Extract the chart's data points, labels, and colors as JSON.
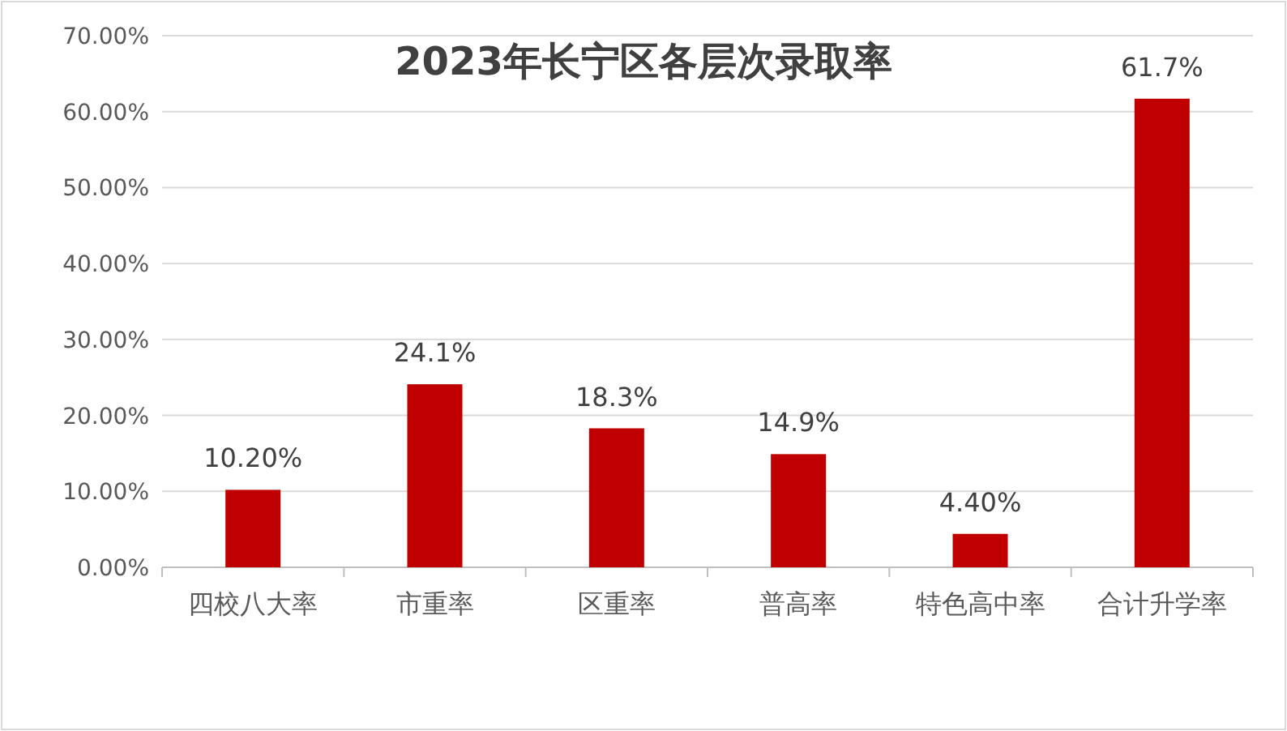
{
  "chart_data": {
    "type": "bar",
    "title": "2023年长宁区各层次录取率",
    "categories": [
      "四校八大率",
      "市重率",
      "区重率",
      "普高率",
      "特色高中率",
      "合计升学率"
    ],
    "values": [
      10.2,
      24.1,
      18.3,
      14.9,
      4.4,
      61.7
    ],
    "value_labels": [
      "10.20%",
      "24.1%",
      "18.3%",
      "14.9%",
      "4.40%",
      "61.7%"
    ],
    "color": "#c00000",
    "ylim": [
      0,
      70
    ],
    "yticks": [
      {
        "value": 0,
        "label": "0.00%"
      },
      {
        "value": 10,
        "label": "10.00%"
      },
      {
        "value": 20,
        "label": "20.00%"
      },
      {
        "value": 30,
        "label": "30.00%"
      },
      {
        "value": 40,
        "label": "40.00%"
      },
      {
        "value": 50,
        "label": "50.00%"
      },
      {
        "value": 60,
        "label": "60.00%"
      },
      {
        "value": 70,
        "label": "70.00%"
      }
    ],
    "grid": "y"
  }
}
